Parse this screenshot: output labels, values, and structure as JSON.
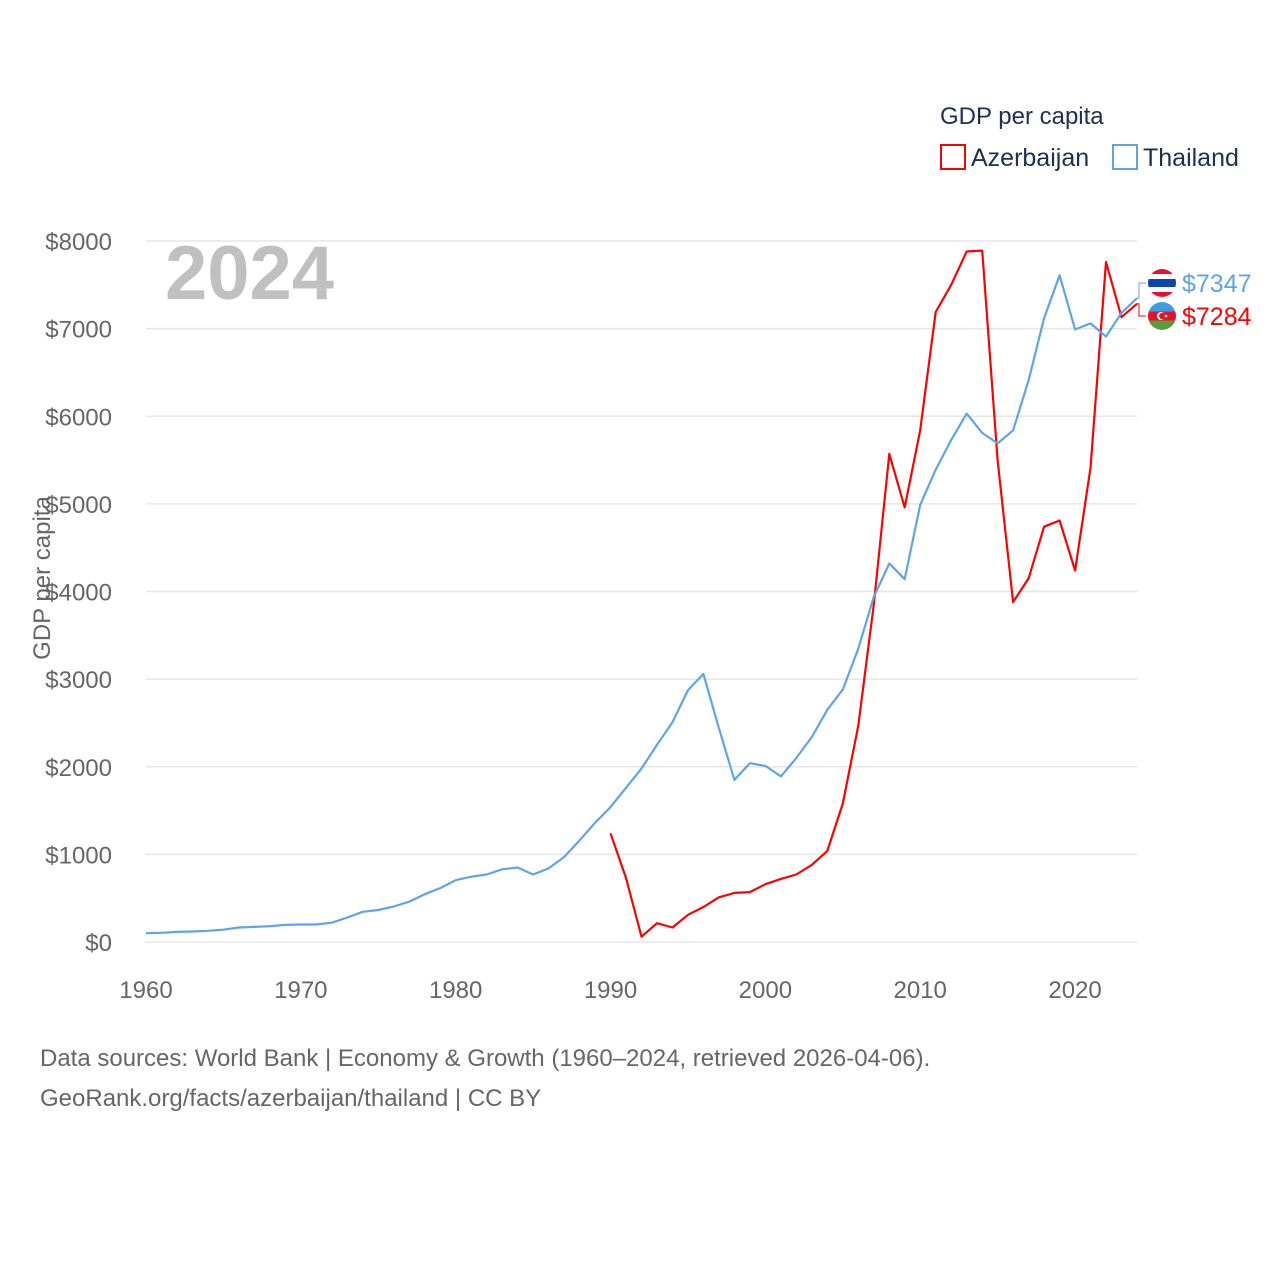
{
  "chart_data": {
    "type": "line",
    "year_label": "2024",
    "legend_title": "GDP per capita",
    "legend_position": "top-right",
    "ylabel": "GDP per capita",
    "xlabel": "",
    "xlim": [
      1960,
      2024
    ],
    "ylim": [
      0,
      8000
    ],
    "grid": true,
    "x_ticks": [
      "1960",
      "1970",
      "1980",
      "1990",
      "2000",
      "2010",
      "2020"
    ],
    "y_ticks": [
      "$0",
      "$1000",
      "$2000",
      "$3000",
      "$4000",
      "$5000",
      "$6000",
      "$7000",
      "$8000"
    ],
    "series": [
      {
        "name": "Azerbaijan",
        "color": "#ff0000",
        "flag": "azerbaijan-flag",
        "end_label": "$7284",
        "start_year": 1990,
        "values": [
          1240,
          730,
          60,
          215,
          165,
          310,
          400,
          510,
          560,
          570,
          660,
          720,
          770,
          880,
          1040,
          1580,
          2470,
          3850,
          5570,
          4960,
          5840,
          7190,
          7500,
          7880,
          7890,
          5500,
          3880,
          4150,
          4740,
          4810,
          4240,
          5410,
          7760,
          7130,
          7284
        ]
      },
      {
        "name": "Thailand",
        "color": "#5da5e8",
        "flag": "thailand-flag",
        "end_label": "$7347",
        "start_year": 1960,
        "values": [
          100,
          105,
          115,
          120,
          128,
          140,
          165,
          172,
          180,
          195,
          200,
          200,
          220,
          280,
          345,
          365,
          405,
          460,
          545,
          615,
          705,
          745,
          770,
          830,
          850,
          770,
          840,
          970,
          1160,
          1360,
          1540,
          1760,
          1980,
          2250,
          2510,
          2875,
          3060,
          2440,
          1850,
          2040,
          2010,
          1890,
          2100,
          2340,
          2650,
          2880,
          3350,
          3940,
          4320,
          4140,
          4990,
          5390,
          5730,
          6030,
          5810,
          5690,
          5840,
          6410,
          7120,
          7610,
          6990,
          7060,
          6910,
          7180,
          7347
        ]
      }
    ]
  },
  "footer": {
    "line1": "Data sources: World Bank | Economy & Growth (1960–2024, retrieved 2026-04-06).",
    "line2": "GeoRank.org/facts/azerbaijan/thailand | CC BY"
  }
}
